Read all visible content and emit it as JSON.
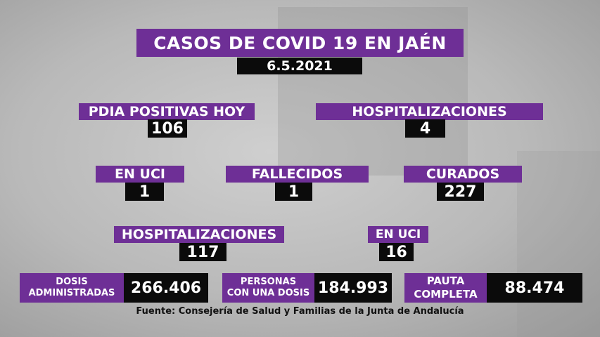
{
  "title": "CASOS DE COVID 19 EN JAÉN",
  "date": "6.5.2021",
  "stats": {
    "pdia": {
      "label": "PDIA POSITIVAS HOY",
      "value": "106"
    },
    "hospitalizaciones": {
      "label": "HOSPITALIZACIONES",
      "value": "4"
    },
    "en_uci": {
      "label": "EN UCI",
      "value": "1"
    },
    "fallecidos": {
      "label": "FALLECIDOS",
      "value": "1"
    },
    "curados": {
      "label": "CURADOS",
      "value": "227"
    },
    "hospitalizaciones_total": {
      "label": "HOSPITALIZACIONES",
      "value": "117"
    },
    "en_uci_total": {
      "label": "EN UCI",
      "value": "16"
    }
  },
  "vacunas": {
    "dosis": {
      "label_line1": "DOSIS",
      "label_line2": "ADMINISTRADAS",
      "value": "266.406"
    },
    "una_dosis": {
      "label_line1": "PERSONAS",
      "label_line2": "CON UNA DOSIS",
      "value": "184.993"
    },
    "pauta": {
      "label_line1": "PAUTA",
      "label_line2": "COMPLETA",
      "value": "88.474"
    }
  },
  "source": "Fuente: Consejería de Salud y Familias de la Junta de Andalucía",
  "colors": {
    "accent": "#6e2f96",
    "value_bg": "#0b0b0b"
  }
}
